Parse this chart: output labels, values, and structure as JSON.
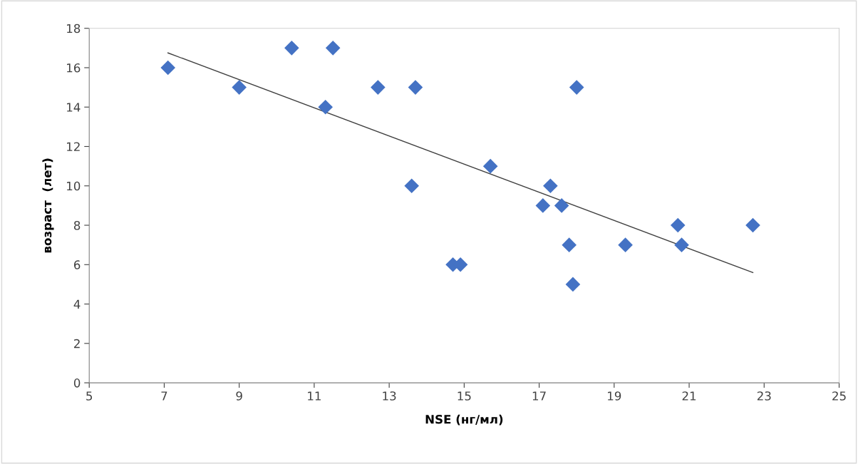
{
  "chart_data": {
    "type": "scatter",
    "xlabel": "NSE (нг/мл)",
    "ylabel": "возраст  (лет)",
    "xlim": [
      5,
      25
    ],
    "xticks": [
      5,
      7,
      9,
      11,
      13,
      15,
      17,
      19,
      21,
      23,
      25
    ],
    "ylim": [
      0,
      18
    ],
    "yticks": [
      0,
      2,
      4,
      6,
      8,
      10,
      12,
      14,
      16,
      18
    ],
    "grid": false,
    "legend": false,
    "marker": "diamond",
    "series": [
      {
        "color": "#4472c4",
        "x": [
          7.1,
          9,
          10.4,
          11.3,
          11.5,
          12.7,
          13.6,
          13.7,
          14.7,
          14.9,
          15.7,
          17.1,
          17.3,
          17.6,
          17.8,
          17.9,
          18,
          19.3,
          20.7,
          20.8,
          22.7
        ],
        "values": [
          16,
          15,
          17,
          14,
          17,
          15,
          10,
          15,
          6,
          6,
          11,
          9,
          10,
          9,
          7,
          5,
          15,
          7,
          8,
          7,
          8
        ]
      },
      {
        "type": "line",
        "color": "#404040",
        "marker": "none",
        "x": [
          7.1,
          22.7
        ],
        "values": [
          16.75,
          5.6
        ]
      }
    ]
  }
}
